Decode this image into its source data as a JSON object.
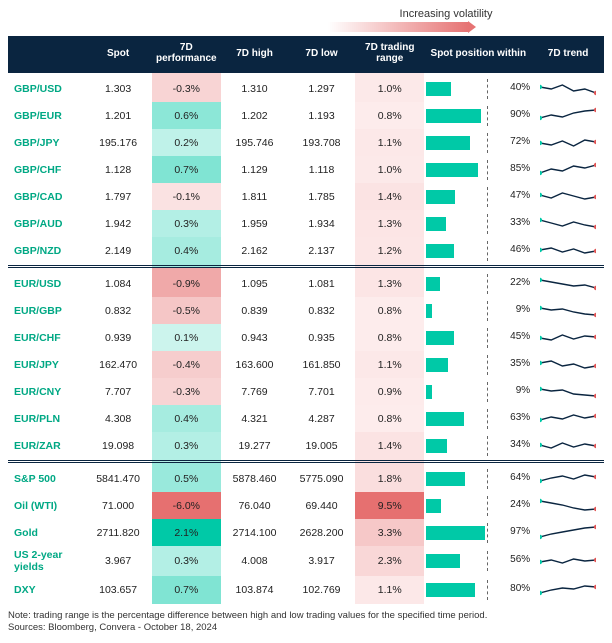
{
  "meta": {
    "volatility_label": "Increasing volatility",
    "footnote_line1": "Note: trading range is the percentage difference between high and low trading values for the specified time period.",
    "footnote_line2": "Sources: Bloomberg, Convera - October 18, 2024"
  },
  "style": {
    "header_bg": "#0a2540",
    "header_fg": "#ffffff",
    "name_color": "#00a884",
    "pos_bar_color": "#00c9a7",
    "dash_position_pct": 58,
    "perf_scale": {
      "neg_color": "#e67070",
      "pos_color": "#00c9a7",
      "neutral": "#ffffff",
      "max_abs": 6.0
    },
    "range_scale": {
      "low": "#fdecec",
      "high": "#e67070",
      "min": 0.8,
      "max": 9.5
    },
    "trend_line_color": "#0a2540",
    "trend_start_color": "#00c9a7",
    "trend_end_color": "#e05555"
  },
  "columns": [
    "",
    "Spot",
    "7D performance",
    "7D high",
    "7D low",
    "7D trading range",
    "Spot position within",
    "7D trend"
  ],
  "groups": [
    {
      "rows": [
        {
          "name": "GBP/USD",
          "spot": "1.303",
          "perf": -0.3,
          "high": "1.310",
          "low": "1.297",
          "range": 1.0,
          "pos": 40,
          "trend": [
            9,
            11,
            7,
            13,
            11,
            15
          ]
        },
        {
          "name": "GBP/EUR",
          "spot": "1.201",
          "perf": 0.6,
          "high": "1.202",
          "low": "1.193",
          "range": 0.8,
          "pos": 90,
          "trend": [
            13,
            10,
            12,
            8,
            6,
            5
          ]
        },
        {
          "name": "GBP/JPY",
          "spot": "195.176",
          "perf": 0.2,
          "high": "195.746",
          "low": "193.708",
          "range": 1.1,
          "pos": 72,
          "trend": [
            11,
            13,
            9,
            14,
            8,
            10
          ]
        },
        {
          "name": "GBP/CHF",
          "spot": "1.128",
          "perf": 0.7,
          "high": "1.129",
          "low": "1.118",
          "range": 1.0,
          "pos": 85,
          "trend": [
            14,
            10,
            12,
            7,
            9,
            6
          ]
        },
        {
          "name": "GBP/CAD",
          "spot": "1.797",
          "perf": -0.1,
          "high": "1.811",
          "low": "1.785",
          "range": 1.4,
          "pos": 47,
          "trend": [
            9,
            12,
            7,
            10,
            13,
            11
          ]
        },
        {
          "name": "GBP/AUD",
          "spot": "1.942",
          "perf": 0.3,
          "high": "1.959",
          "low": "1.934",
          "range": 1.3,
          "pos": 33,
          "trend": [
            7,
            10,
            13,
            9,
            12,
            14
          ]
        },
        {
          "name": "GBP/NZD",
          "spot": "2.149",
          "perf": 0.4,
          "high": "2.162",
          "low": "2.137",
          "range": 1.2,
          "pos": 46,
          "trend": [
            10,
            8,
            12,
            9,
            13,
            11
          ]
        }
      ]
    },
    {
      "rows": [
        {
          "name": "EUR/USD",
          "spot": "1.084",
          "perf": -0.9,
          "high": "1.095",
          "low": "1.081",
          "range": 1.3,
          "pos": 22,
          "trend": [
            7,
            9,
            11,
            13,
            12,
            15
          ]
        },
        {
          "name": "EUR/GBP",
          "spot": "0.832",
          "perf": -0.5,
          "high": "0.839",
          "low": "0.832",
          "range": 0.8,
          "pos": 9,
          "trend": [
            8,
            10,
            9,
            12,
            14,
            15
          ]
        },
        {
          "name": "EUR/CHF",
          "spot": "0.939",
          "perf": 0.1,
          "high": "0.943",
          "low": "0.935",
          "range": 0.8,
          "pos": 45,
          "trend": [
            11,
            13,
            8,
            12,
            9,
            10
          ]
        },
        {
          "name": "EUR/JPY",
          "spot": "162.470",
          "perf": -0.4,
          "high": "163.600",
          "low": "161.850",
          "range": 1.1,
          "pos": 35,
          "trend": [
            9,
            7,
            12,
            10,
            14,
            12
          ]
        },
        {
          "name": "EUR/CNY",
          "spot": "7.707",
          "perf": -0.3,
          "high": "7.769",
          "low": "7.701",
          "range": 0.9,
          "pos": 9,
          "trend": [
            8,
            10,
            9,
            13,
            14,
            15
          ]
        },
        {
          "name": "EUR/PLN",
          "spot": "4.308",
          "perf": 0.4,
          "high": "4.321",
          "low": "4.287",
          "range": 0.8,
          "pos": 63,
          "trend": [
            12,
            9,
            11,
            7,
            10,
            8
          ]
        },
        {
          "name": "EUR/ZAR",
          "spot": "19.098",
          "perf": 0.3,
          "high": "19.277",
          "low": "19.005",
          "range": 1.4,
          "pos": 34,
          "trend": [
            10,
            13,
            8,
            12,
            9,
            11
          ]
        }
      ]
    },
    {
      "rows": [
        {
          "name": "S&P 500",
          "spot": "5841.470",
          "perf": 0.5,
          "high": "5878.460",
          "low": "5775.090",
          "range": 1.8,
          "pos": 64,
          "trend": [
            13,
            10,
            8,
            11,
            7,
            9
          ]
        },
        {
          "name": "Oil (WTI)",
          "spot": "71.000",
          "perf": -6.0,
          "high": "76.040",
          "low": "69.440",
          "range": 9.5,
          "pos": 24,
          "trend": [
            6,
            8,
            10,
            13,
            15,
            14
          ]
        },
        {
          "name": "Gold",
          "spot": "2711.820",
          "perf": 2.1,
          "high": "2714.100",
          "low": "2628.200",
          "range": 3.3,
          "pos": 97,
          "trend": [
            15,
            12,
            10,
            8,
            6,
            5
          ]
        },
        {
          "name": "US 2-year yields",
          "spot": "3.967",
          "perf": 0.3,
          "high": "4.008",
          "low": "3.917",
          "range": 2.3,
          "pos": 56,
          "trend": [
            11,
            9,
            12,
            8,
            10,
            9
          ]
        },
        {
          "name": "DXY",
          "spot": "103.657",
          "perf": 0.7,
          "high": "103.874",
          "low": "102.769",
          "range": 1.1,
          "pos": 80,
          "trend": [
            14,
            11,
            9,
            10,
            7,
            8
          ]
        }
      ]
    }
  ]
}
